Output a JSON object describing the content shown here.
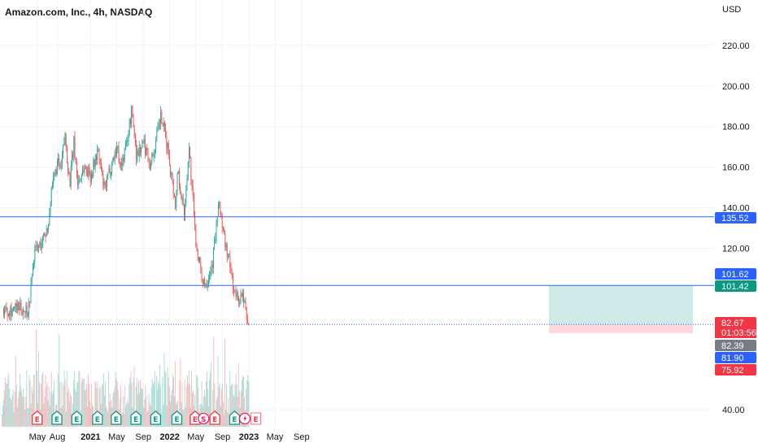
{
  "header": {
    "title": "Amazon.com, Inc., 4h, NASDAQ"
  },
  "colors": {
    "up": "#26a69a",
    "down": "#ef5350",
    "hline": "#2962ff",
    "tp_zone": "#b2dfdb",
    "sl_zone": "#ffcdd2",
    "badge_blue": "#2962ff",
    "badge_green": "#089981",
    "badge_red": "#f23645",
    "badge_gray": "#787b86",
    "earnings": "#f23645",
    "earnings_up": "#089981",
    "dividend": "#e91e63"
  },
  "chart_data": {
    "type": "candlestick",
    "currency": "USD",
    "y_ticks": [
      "220.00",
      "200.00",
      "180.00",
      "160.00",
      "140.00",
      "120.00",
      "40.00"
    ],
    "y_tick_values": [
      220,
      200,
      180,
      160,
      140,
      120,
      40
    ],
    "x_ticks": [
      "May",
      "Aug",
      "2021",
      "May",
      "Sep",
      "2022",
      "May",
      "Sep",
      "2023",
      "May",
      "Sep"
    ],
    "x_ticks_bold": [
      "2021",
      "2022",
      "2023"
    ],
    "x_tick_dates": [
      "2020-05",
      "2020-08",
      "2021-01",
      "2021-05",
      "2021-09",
      "2022-01",
      "2022-05",
      "2022-09",
      "2023-01",
      "2023-05",
      "2023-09"
    ],
    "horizontal_lines": [
      135.52,
      101.62,
      82.39
    ],
    "price_labels": [
      {
        "text": "135.52",
        "value": 135.52,
        "kind": "blue"
      },
      {
        "text": "101.62",
        "value": 101.62,
        "kind": "blue"
      },
      {
        "text": "101.42",
        "value": 101.42,
        "kind": "green"
      },
      {
        "text": "82.67",
        "value": 82.67,
        "kind": "red"
      },
      {
        "text": "01:03:56",
        "value": 82.67,
        "kind": "red"
      },
      {
        "text": "82.39",
        "value": 82.39,
        "kind": "gray"
      },
      {
        "text": "81.90",
        "value": 81.9,
        "kind": "blue"
      },
      {
        "text": "75.92",
        "value": 75.92,
        "kind": "red"
      }
    ],
    "position_zone": {
      "entry": 82.39,
      "target": 101.62,
      "stop": 75.92
    },
    "price_path": [
      [
        "2020-03-20",
        90
      ],
      [
        "2020-04-15",
        118
      ],
      [
        "2020-05-15",
        122
      ],
      [
        "2020-06-15",
        130
      ],
      [
        "2020-07-01",
        145
      ],
      [
        "2020-07-15",
        155
      ],
      [
        "2020-08-01",
        162
      ],
      [
        "2020-08-15",
        158
      ],
      [
        "2020-09-03",
        176
      ],
      [
        "2020-09-25",
        152
      ],
      [
        "2020-10-15",
        172
      ],
      [
        "2020-11-01",
        152
      ],
      [
        "2020-12-01",
        160
      ],
      [
        "2021-01-01",
        156
      ],
      [
        "2021-02-01",
        168
      ],
      [
        "2021-03-05",
        148
      ],
      [
        "2021-04-01",
        160
      ],
      [
        "2021-05-01",
        170
      ],
      [
        "2021-05-20",
        160
      ],
      [
        "2021-06-15",
        172
      ],
      [
        "2021-07-08",
        188
      ],
      [
        "2021-07-30",
        166
      ],
      [
        "2021-09-01",
        172
      ],
      [
        "2021-10-01",
        162
      ],
      [
        "2021-10-20",
        168
      ],
      [
        "2021-11-19",
        185
      ],
      [
        "2021-12-20",
        170
      ],
      [
        "2022-01-28",
        140
      ],
      [
        "2022-02-04",
        160
      ],
      [
        "2022-03-07",
        136
      ],
      [
        "2022-03-29",
        170
      ],
      [
        "2022-04-28",
        125
      ],
      [
        "2022-05-24",
        106
      ],
      [
        "2022-06-16",
        103
      ],
      [
        "2022-07-15",
        113
      ],
      [
        "2022-08-16",
        143
      ],
      [
        "2022-09-01",
        128
      ],
      [
        "2022-09-30",
        113
      ],
      [
        "2022-10-27",
        97
      ],
      [
        "2022-11-10",
        95
      ],
      [
        "2022-12-01",
        96
      ],
      [
        "2022-12-28",
        82
      ]
    ],
    "events": [
      {
        "label": "E",
        "date": "2020-04-30",
        "type": "earnings"
      },
      {
        "label": "E",
        "date": "2020-07-30",
        "type": "earnings_up"
      },
      {
        "label": "E",
        "date": "2020-10-29",
        "type": "earnings_up"
      },
      {
        "label": "E",
        "date": "2021-02-02",
        "type": "earnings_up"
      },
      {
        "label": "E",
        "date": "2021-04-29",
        "type": "earnings_up"
      },
      {
        "label": "E",
        "date": "2021-07-29",
        "type": "earnings_up"
      },
      {
        "label": "E",
        "date": "2021-10-28",
        "type": "earnings_up"
      },
      {
        "label": "E",
        "date": "2022-02-03",
        "type": "earnings_up"
      },
      {
        "label": "E",
        "date": "2022-04-28",
        "type": "earnings"
      },
      {
        "label": "S",
        "date": "2022-06-06",
        "type": "split"
      },
      {
        "label": "E",
        "date": "2022-07-28",
        "type": "earnings"
      },
      {
        "label": "E",
        "date": "2022-10-27",
        "type": "earnings_up"
      },
      {
        "label": "E",
        "date": "2023-02-02",
        "type": "upcoming"
      }
    ]
  }
}
